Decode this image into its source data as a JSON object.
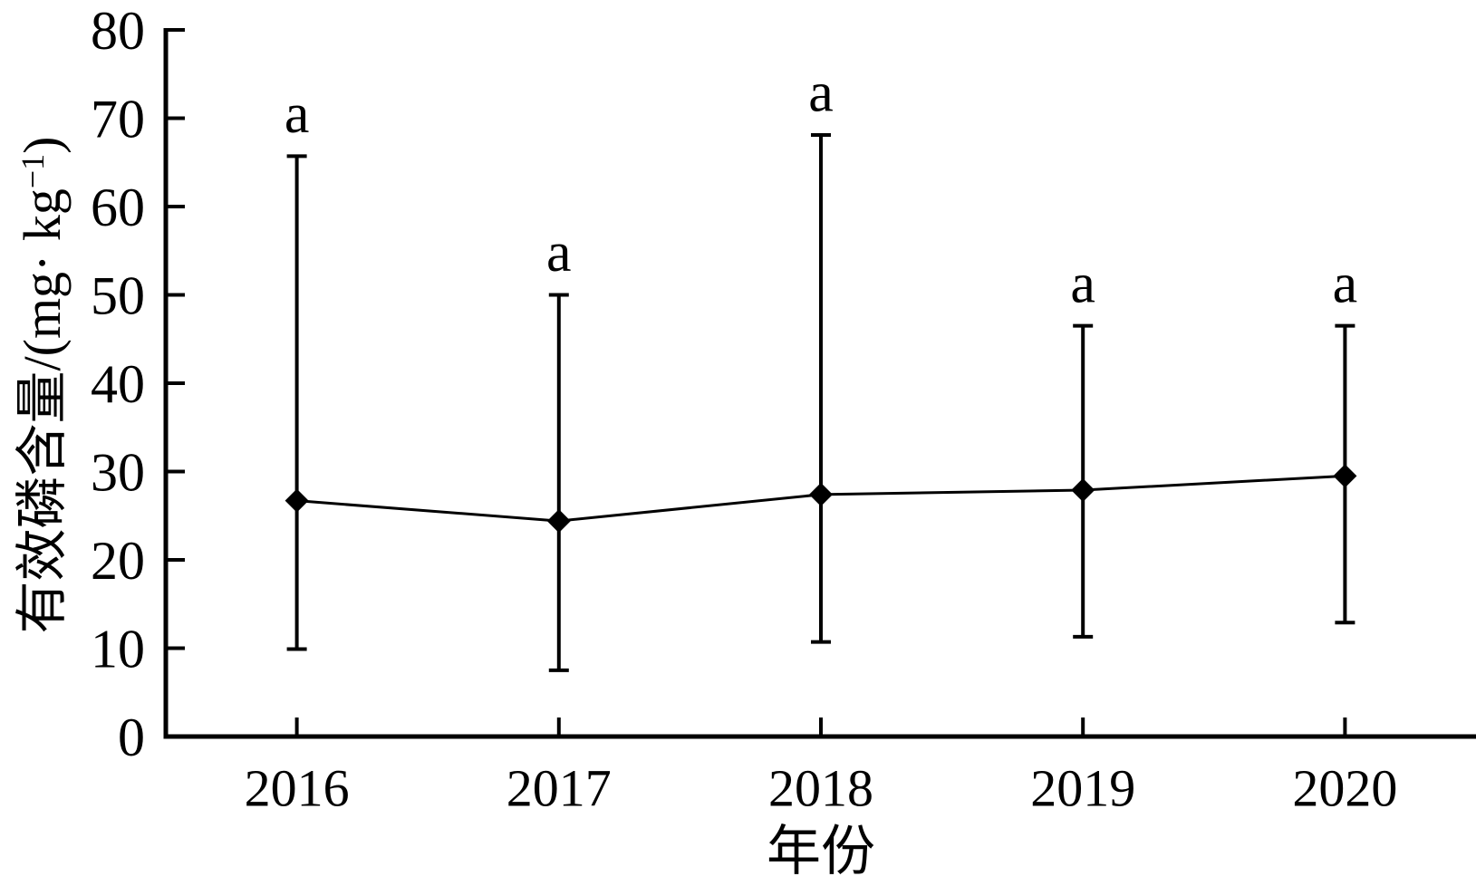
{
  "chart_data": {
    "type": "line",
    "title": "",
    "xlabel": "年份",
    "ylabel": "有效磷含量/(mg· kg−1)",
    "ylabel_parts": {
      "prefix": "有效磷含量/(mg· kg",
      "superscript": "−1",
      "suffix": ")"
    },
    "categories": [
      "2016",
      "2017",
      "2018",
      "2019",
      "2020"
    ],
    "series": [
      {
        "name": "有效磷含量",
        "values": [
          26.7,
          24.4,
          27.4,
          27.9,
          29.5
        ],
        "error_upper_values": [
          65.7,
          50.0,
          68.1,
          46.5,
          46.5
        ],
        "error_lower_values": [
          9.9,
          7.5,
          10.7,
          11.3,
          12.9
        ]
      }
    ],
    "point_labels": [
      "a",
      "a",
      "a",
      "a",
      "a"
    ],
    "ylim": [
      0,
      80
    ],
    "yticks": [
      0,
      10,
      20,
      30,
      40,
      50,
      60,
      70,
      80
    ],
    "grid": false,
    "legend": "none",
    "marker": "diamond",
    "colors": {
      "foreground": "#000000",
      "background": "#ffffff"
    }
  }
}
